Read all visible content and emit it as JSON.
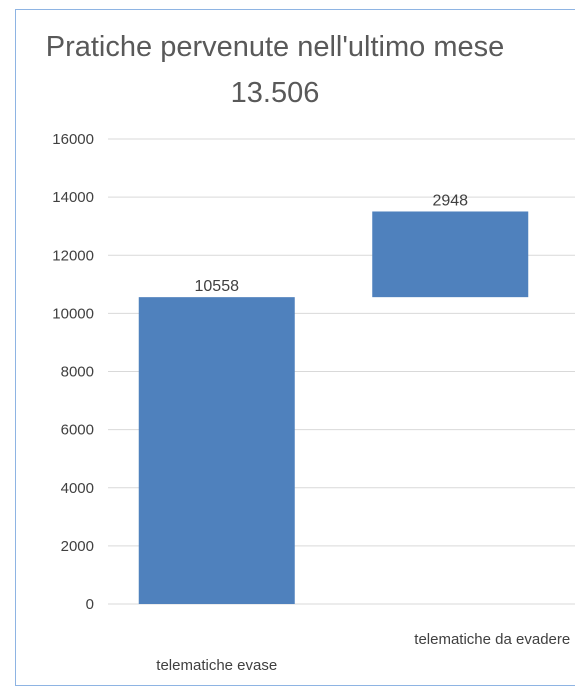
{
  "chart_data": {
    "type": "bar",
    "subtype": "waterfall",
    "title": "Pratiche pervenute nell'ultimo mese 13.506",
    "categories": [
      "telematiche evase",
      "telematiche da evadere"
    ],
    "bases": [
      0,
      10558
    ],
    "values": [
      10558,
      2948
    ],
    "data_labels": [
      "10558",
      "2948"
    ],
    "yticks": [
      0,
      2000,
      4000,
      6000,
      8000,
      10000,
      12000,
      14000,
      16000
    ],
    "ylim": [
      0,
      16000
    ],
    "grid": true,
    "bar_color": "#4f81bd",
    "grid_color": "#d9d9d9",
    "frame_color": "#8eb4e3"
  }
}
